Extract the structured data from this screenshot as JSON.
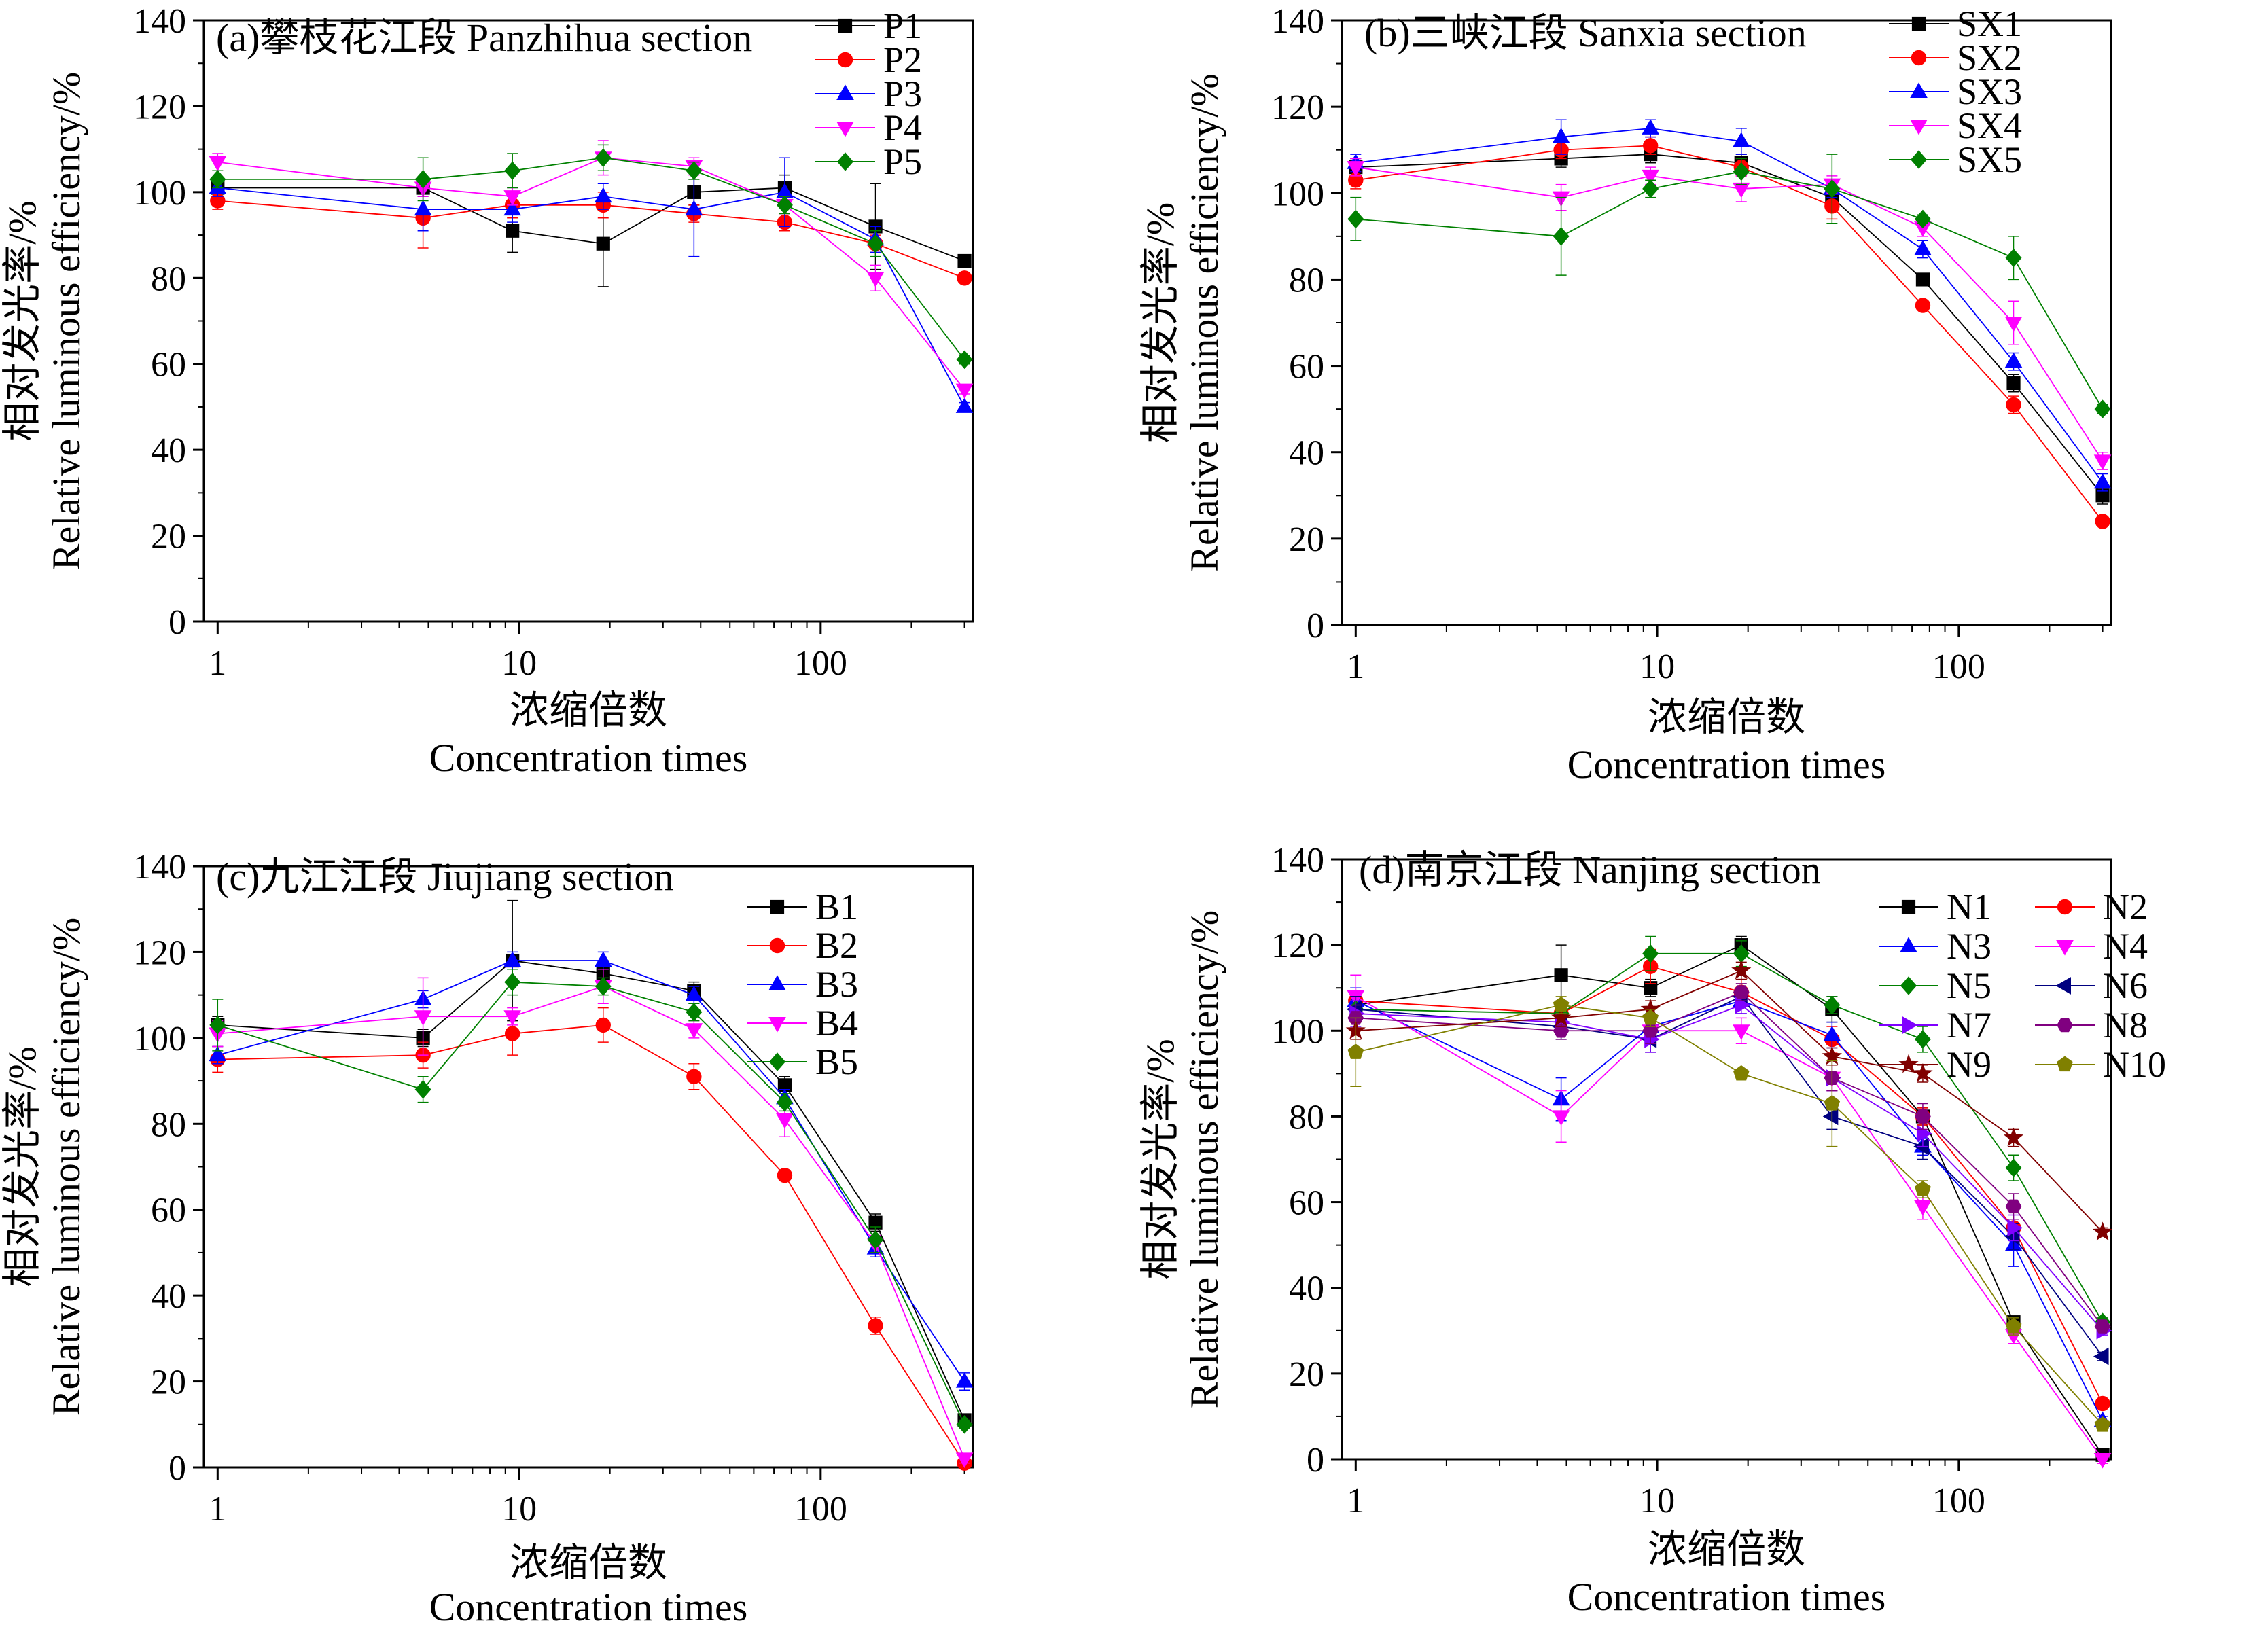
{
  "chart_data": [
    {
      "type": "line",
      "title": "(a)攀枝花江段 Panzhihua section",
      "xlabel": [
        "浓缩倍数",
        "Concentration times"
      ],
      "ylabel": [
        "相对发光率/%",
        "Relative luminous efficiency/%"
      ],
      "x_scale": "log",
      "x_ticks": [
        "1",
        "10",
        "100"
      ],
      "y_ticks": [
        "0",
        "20",
        "40",
        "60",
        "80",
        "100",
        "120",
        "140"
      ],
      "ylim": [
        0,
        140
      ],
      "legend_columns": 1,
      "x": [
        1,
        4.8,
        9.5,
        19,
        38,
        76,
        152,
        300
      ],
      "series": [
        {
          "name": "P1",
          "color": "#000000",
          "marker": "square",
          "values": [
            101,
            101,
            91,
            88,
            100,
            101,
            92,
            84
          ],
          "errors": [
            2,
            2,
            5,
            10,
            3,
            3,
            10,
            1
          ]
        },
        {
          "name": "P2",
          "color": "#ff0000",
          "marker": "circle",
          "values": [
            98,
            94,
            97,
            97,
            95,
            93,
            88,
            80
          ],
          "errors": [
            2,
            7,
            3,
            3,
            2,
            2,
            2,
            1
          ]
        },
        {
          "name": "P3",
          "color": "#0000ff",
          "marker": "triangle",
          "values": [
            101,
            96,
            96,
            99,
            96,
            100,
            89,
            50
          ],
          "errors": [
            2,
            5,
            3,
            3,
            11,
            8,
            3,
            1
          ]
        },
        {
          "name": "P4",
          "color": "#ff00ff",
          "marker": "tri-down",
          "values": [
            107,
            101,
            99,
            108,
            106,
            97,
            80,
            54
          ],
          "errors": [
            2,
            2,
            2,
            4,
            2,
            2,
            3,
            1
          ]
        },
        {
          "name": "P5",
          "color": "#008000",
          "marker": "diamond",
          "values": [
            103,
            103,
            105,
            108,
            105,
            97,
            88,
            61
          ],
          "errors": [
            2,
            5,
            4,
            3,
            2,
            2,
            3,
            1
          ]
        }
      ]
    },
    {
      "type": "line",
      "title": "(b)三峡江段 Sanxia section",
      "xlabel": [
        "浓缩倍数",
        "Concentration times"
      ],
      "ylabel": [
        "相对发光率/%",
        "Relative luminous efficiency/%"
      ],
      "x_scale": "log",
      "x_ticks": [
        "1",
        "10",
        "100"
      ],
      "y_ticks": [
        "0",
        "20",
        "40",
        "60",
        "80",
        "100",
        "120",
        "140"
      ],
      "ylim": [
        0,
        140
      ],
      "legend_columns": 1,
      "x": [
        1,
        4.8,
        9.5,
        19,
        38,
        76,
        152,
        300
      ],
      "series": [
        {
          "name": "SX1",
          "color": "#000000",
          "marker": "square",
          "values": [
            106,
            108,
            109,
            107,
            99,
            80,
            56,
            30
          ],
          "errors": [
            2,
            2,
            2,
            2,
            2,
            1,
            2,
            2
          ]
        },
        {
          "name": "SX2",
          "color": "#ff0000",
          "marker": "circle",
          "values": [
            103,
            110,
            111,
            106,
            97,
            74,
            51,
            24
          ],
          "errors": [
            2,
            2,
            2,
            2,
            3,
            1,
            2,
            1
          ]
        },
        {
          "name": "SX3",
          "color": "#0000ff",
          "marker": "triangle",
          "values": [
            107,
            113,
            115,
            112,
            101,
            87,
            61,
            33
          ],
          "errors": [
            2,
            4,
            2,
            3,
            2,
            2,
            2,
            2
          ]
        },
        {
          "name": "SX4",
          "color": "#ff00ff",
          "marker": "tri-down",
          "values": [
            106,
            99,
            104,
            101,
            102,
            92,
            70,
            38
          ],
          "errors": [
            2,
            3,
            2,
            3,
            2,
            2,
            5,
            2
          ]
        },
        {
          "name": "SX5",
          "color": "#008000",
          "marker": "diamond",
          "values": [
            94,
            90,
            101,
            105,
            101,
            94,
            85,
            50
          ],
          "errors": [
            5,
            9,
            2,
            3,
            8,
            1,
            5,
            1
          ]
        }
      ]
    },
    {
      "type": "line",
      "title": "(c)九江江段 Jiujiang section",
      "xlabel": [
        "浓缩倍数",
        "Concentration times"
      ],
      "ylabel": [
        "相对发光率/%",
        "Relative luminous efficiency/%"
      ],
      "x_scale": "log",
      "x_ticks": [
        "1",
        "10",
        "100"
      ],
      "y_ticks": [
        "0",
        "20",
        "40",
        "60",
        "80",
        "100",
        "120",
        "140"
      ],
      "ylim": [
        0,
        140
      ],
      "legend_columns": 1,
      "x": [
        1,
        4.8,
        9.5,
        19,
        38,
        76,
        152,
        300
      ],
      "series": [
        {
          "name": "B1",
          "color": "#000000",
          "marker": "square",
          "values": [
            103,
            100,
            118,
            115,
            111,
            89,
            57,
            11
          ],
          "errors": [
            2,
            2,
            14,
            3,
            2,
            2,
            2,
            1
          ]
        },
        {
          "name": "B2",
          "color": "#ff0000",
          "marker": "circle",
          "values": [
            95,
            96,
            101,
            103,
            91,
            68,
            33,
            1
          ],
          "errors": [
            3,
            3,
            5,
            4,
            3,
            1,
            2,
            1
          ]
        },
        {
          "name": "B3",
          "color": "#0000ff",
          "marker": "triangle",
          "values": [
            96,
            109,
            118,
            118,
            110,
            86,
            51,
            20
          ],
          "errors": [
            2,
            2,
            2,
            2,
            2,
            2,
            2,
            2
          ]
        },
        {
          "name": "B4",
          "color": "#ff00ff",
          "marker": "tri-down",
          "values": [
            101,
            105,
            105,
            112,
            102,
            81,
            52,
            2
          ],
          "errors": [
            3,
            9,
            2,
            4,
            2,
            4,
            2,
            1
          ]
        },
        {
          "name": "B5",
          "color": "#008000",
          "marker": "diamond",
          "values": [
            103,
            88,
            113,
            112,
            106,
            85,
            53,
            10
          ],
          "errors": [
            6,
            3,
            3,
            2,
            2,
            2,
            3,
            1
          ]
        }
      ]
    },
    {
      "type": "line",
      "title": "(d)南京江段 Nanjing section",
      "xlabel": [
        "浓缩倍数",
        "Concentration times"
      ],
      "ylabel": [
        "相对发光率/%",
        "Relative luminous efficiency/%"
      ],
      "x_scale": "log",
      "x_ticks": [
        "1",
        "10",
        "100"
      ],
      "y_ticks": [
        "0",
        "20",
        "40",
        "60",
        "80",
        "100",
        "120",
        "140"
      ],
      "ylim": [
        0,
        140
      ],
      "legend_columns": 2,
      "x": [
        1,
        4.8,
        9.5,
        19,
        38,
        76,
        152,
        300
      ],
      "series": [
        {
          "name": "N1",
          "color": "#000000",
          "marker": "square",
          "values": [
            106,
            113,
            110,
            120,
            105,
            80,
            32,
            1
          ],
          "errors": [
            3,
            7,
            2,
            2,
            3,
            2,
            1,
            1
          ]
        },
        {
          "name": "N2",
          "color": "#ff0000",
          "marker": "circle",
          "values": [
            107,
            104,
            115,
            109,
            98,
            80,
            54,
            13
          ],
          "errors": [
            3,
            3,
            4,
            3,
            3,
            2,
            2,
            1
          ]
        },
        {
          "name": "N3",
          "color": "#0000ff",
          "marker": "triangle",
          "values": [
            107,
            84,
            101,
            107,
            99,
            73,
            50,
            9
          ],
          "errors": [
            3,
            5,
            3,
            3,
            3,
            2,
            5,
            1
          ]
        },
        {
          "name": "N4",
          "color": "#ff00ff",
          "marker": "tri-down",
          "values": [
            108,
            80,
            100,
            100,
            89,
            59,
            29,
            0
          ],
          "errors": [
            5,
            6,
            3,
            3,
            3,
            3,
            2,
            1
          ]
        },
        {
          "name": "N5",
          "color": "#008000",
          "marker": "diamond",
          "values": [
            105,
            104,
            118,
            118,
            106,
            98,
            68,
            32
          ],
          "errors": [
            3,
            3,
            4,
            3,
            2,
            3,
            3,
            1
          ]
        },
        {
          "name": "N6",
          "color": "#000080",
          "marker": "tri-left",
          "values": [
            105,
            101,
            98,
            108,
            80,
            73,
            52,
            24
          ],
          "errors": [
            3,
            3,
            3,
            2,
            3,
            3,
            3,
            1
          ]
        },
        {
          "name": "N7",
          "color": "#8000ff",
          "marker": "tri-right",
          "values": [
            104,
            102,
            98,
            106,
            89,
            76,
            54,
            30
          ],
          "errors": [
            3,
            3,
            3,
            2,
            3,
            3,
            3,
            1
          ]
        },
        {
          "name": "N8",
          "color": "#800080",
          "marker": "hexagon",
          "values": [
            103,
            100,
            100,
            109,
            89,
            80,
            59,
            31
          ],
          "errors": [
            3,
            2,
            3,
            2,
            3,
            3,
            3,
            1
          ]
        },
        {
          "name": "N9",
          "color": "#800000",
          "marker": "star",
          "values": [
            100,
            103,
            105,
            114,
            94,
            90,
            75,
            53
          ],
          "errors": [
            2,
            2,
            2,
            2,
            2,
            2,
            2,
            1
          ]
        },
        {
          "name": "N10",
          "color": "#808000",
          "marker": "pentagon",
          "values": [
            95,
            106,
            103,
            90,
            83,
            63,
            31,
            8
          ],
          "errors": [
            8,
            2,
            2,
            1,
            10,
            2,
            2,
            1
          ]
        }
      ]
    }
  ]
}
